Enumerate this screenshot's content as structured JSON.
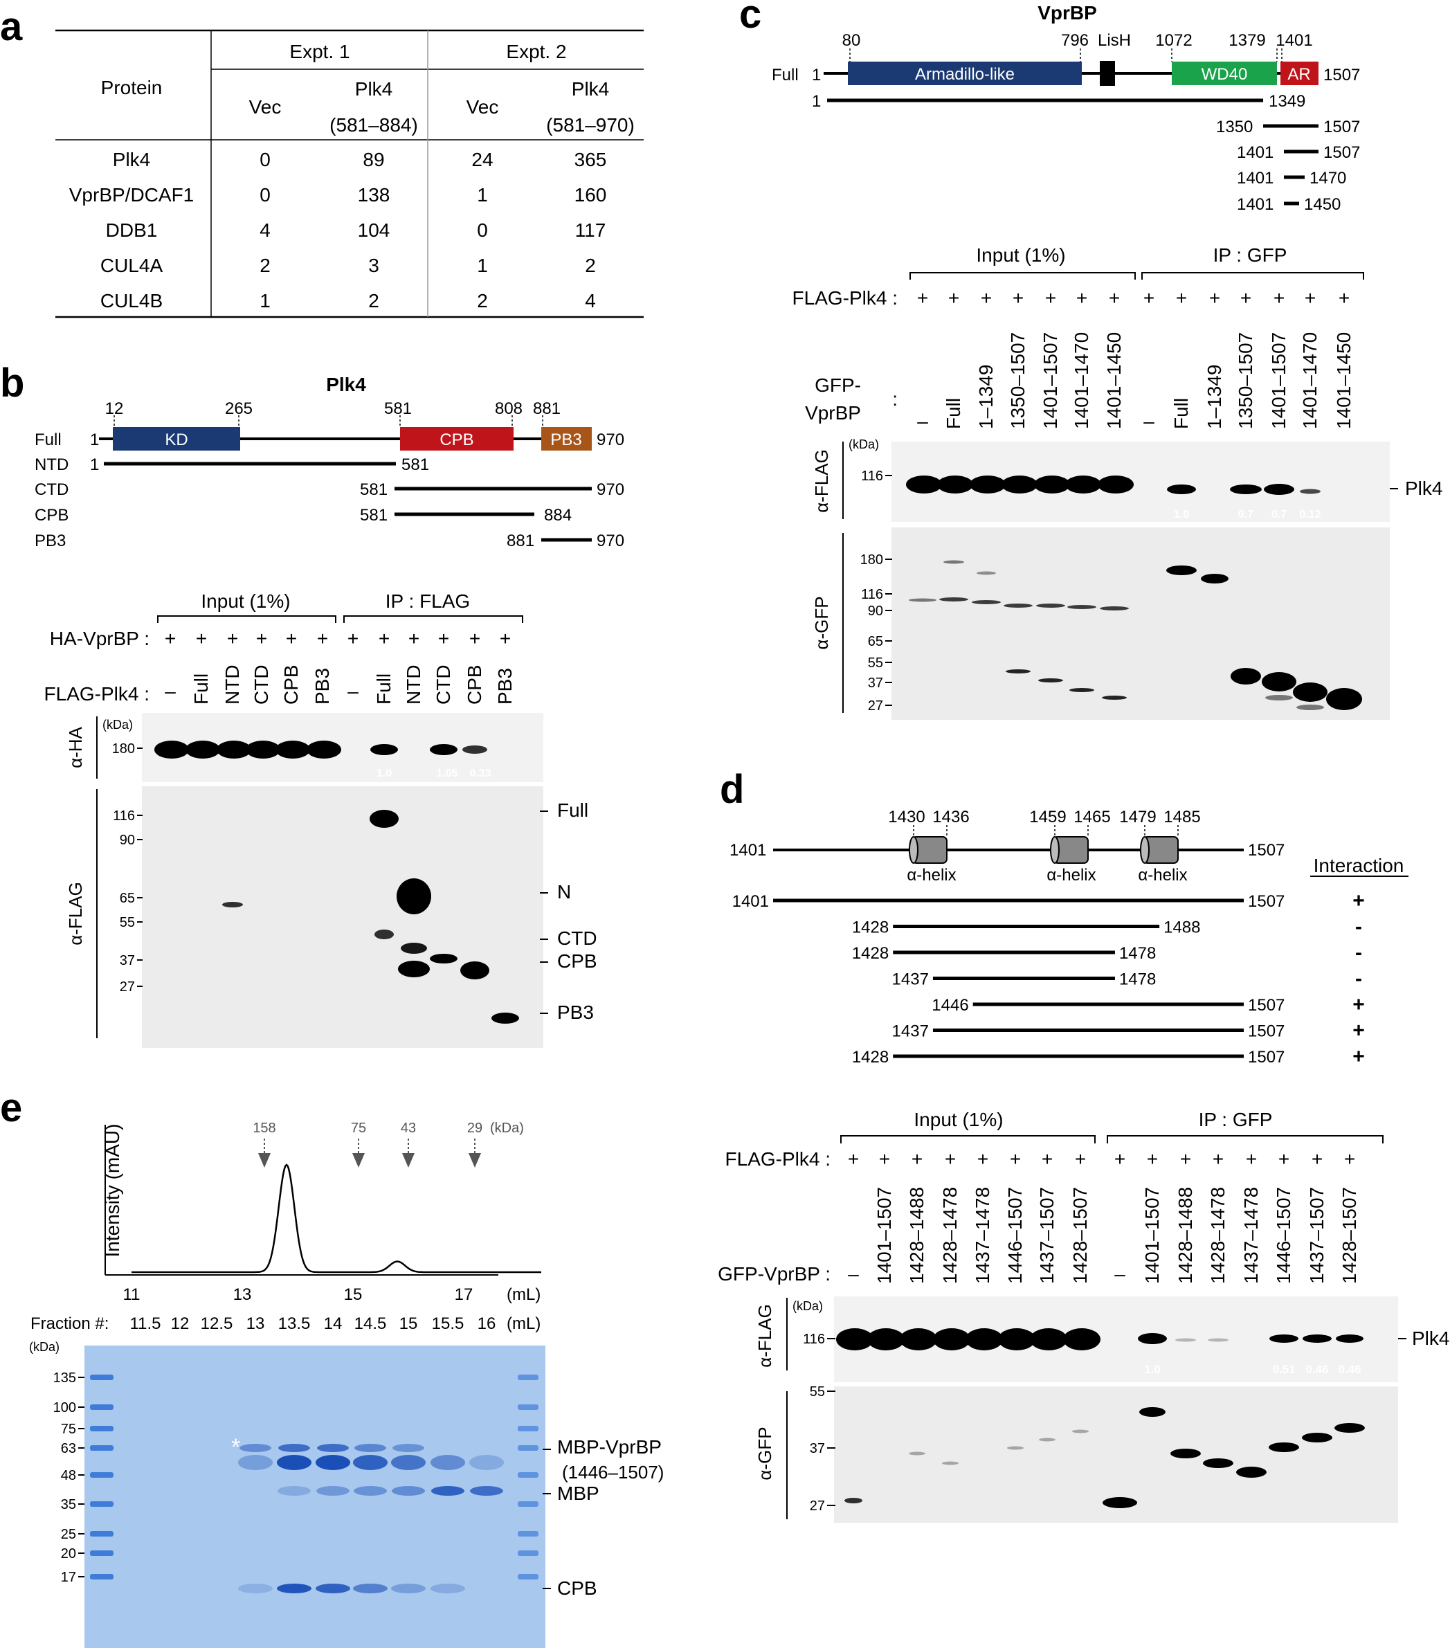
{
  "panel_letters": [
    "a",
    "b",
    "c",
    "d",
    "e"
  ],
  "table_a": {
    "protein_header": "Protein",
    "expt1": "Expt. 1",
    "expt2": "Expt. 2",
    "vec": "Vec",
    "plk4": "Plk4",
    "range1": "(581–884)",
    "range2": "(581–970)",
    "rows": [
      {
        "name": "Plk4",
        "v": [
          "0",
          "89",
          "24",
          "365"
        ]
      },
      {
        "name": "VprBP/DCAF1",
        "v": [
          "0",
          "138",
          "1",
          "160"
        ]
      },
      {
        "name": "DDB1",
        "v": [
          "4",
          "104",
          "0",
          "117"
        ]
      },
      {
        "name": "CUL4A",
        "v": [
          "2",
          "3",
          "1",
          "2"
        ]
      },
      {
        "name": "CUL4B",
        "v": [
          "1",
          "2",
          "2",
          "4"
        ]
      }
    ]
  },
  "panel_b": {
    "title": "Plk4",
    "domains": {
      "kd": "KD",
      "cpb": "CPB",
      "pb3": "PB3"
    },
    "domain_colors": {
      "kd": "#1b3a73",
      "cpb": "#c0141b",
      "pb3": "#a8551a"
    },
    "top_numbers": [
      "12",
      "265",
      "581",
      "808",
      "881"
    ],
    "constructs": [
      {
        "name": "Full",
        "start": "1",
        "end": "970"
      },
      {
        "name": "NTD",
        "start": "1",
        "end": "581"
      },
      {
        "name": "CTD",
        "start": "581",
        "end": "970"
      },
      {
        "name": "CPB",
        "start": "581",
        "end": "884"
      },
      {
        "name": "PB3",
        "start": "881",
        "end": "970"
      }
    ],
    "input_label": "Input (1%)",
    "ip_label": "IP : FLAG",
    "row1_label": "HA-VprBP :",
    "row2_label": "FLAG-Plk4 :",
    "plus": "+",
    "dash": "–",
    "lanes": [
      "Full",
      "NTD",
      "CTD",
      "CPB",
      "PB3"
    ],
    "kda": "(kDa)",
    "blot1_label": "α-HA",
    "blot1_markers": [
      "180"
    ],
    "blot1_quant": [
      "1.0",
      "1.05",
      "0.33"
    ],
    "blot2_label": "α-FLAG",
    "blot2_markers": [
      "116",
      "90",
      "65",
      "55",
      "37",
      "27"
    ],
    "blot2_right": [
      "Full",
      "N",
      "CTD",
      "CPB",
      "PB3"
    ]
  },
  "panel_c": {
    "title": "VprBP",
    "domains": {
      "arm": "Armadillo-like",
      "lish": "LisH",
      "wd40": "WD40",
      "ar": "AR"
    },
    "domain_colors": {
      "arm": "#1b3a73",
      "lish": "#000000",
      "wd40": "#1aa34a",
      "ar": "#c0141b"
    },
    "top_numbers": [
      "80",
      "796",
      "LisH",
      "1072",
      "1379",
      "1401"
    ],
    "full_name": "Full",
    "full_start": "1",
    "full_end": "1507",
    "constructs": [
      {
        "start": "1",
        "end": "1349"
      },
      {
        "start": "1350",
        "end": "1507"
      },
      {
        "start": "1401",
        "end": "1507"
      },
      {
        "start": "1401",
        "end": "1470"
      },
      {
        "start": "1401",
        "end": "1450"
      }
    ],
    "input_label": "Input (1%)",
    "ip_label": "IP : GFP",
    "row1_label": "FLAG-Plk4 :",
    "row2_label_1": "GFP-",
    "row2_label_2": "VprBP",
    "colon": ":",
    "lanes": [
      "Full",
      "1–1349",
      "1350–1507",
      "1401–1507",
      "1401–1470",
      "1401–1450"
    ],
    "kda": "(kDa)",
    "blot1_label": "α-FLAG",
    "blot1_markers": [
      "116"
    ],
    "blot1_quant": [
      "1.0",
      "0.7",
      "0.7",
      "0.12"
    ],
    "blot1_right": "Plk4",
    "blot2_label": "α-GFP",
    "blot2_markers": [
      "180",
      "116",
      "90",
      "65",
      "55",
      "37",
      "27"
    ]
  },
  "panel_d": {
    "start": "1401",
    "end": "1507",
    "helix_numbers": [
      "1430",
      "1436",
      "1459",
      "1465",
      "1479",
      "1485"
    ],
    "helix_label": "α-helix",
    "interaction_header": "Interaction",
    "constructs": [
      {
        "start": "1401",
        "end": "1507",
        "result": "+"
      },
      {
        "start": "1428",
        "end": "1488",
        "result": "-"
      },
      {
        "start": "1428",
        "end": "1478",
        "result": "-"
      },
      {
        "start": "1437",
        "end": "1478",
        "result": "-"
      },
      {
        "start": "1446",
        "end": "1507",
        "result": "+"
      },
      {
        "start": "1437",
        "end": "1507",
        "result": "+"
      },
      {
        "start": "1428",
        "end": "1507",
        "result": "+"
      }
    ],
    "input_label": "Input (1%)",
    "ip_label": "IP : GFP",
    "row1_label": "FLAG-Plk4 :",
    "row2_label": "GFP-VprBP :",
    "lanes": [
      "1401–1507",
      "1428–1488",
      "1428–1478",
      "1437–1478",
      "1446–1507",
      "1437–1507",
      "1428–1507"
    ],
    "kda": "(kDa)",
    "blot1_label": "α-FLAG",
    "blot1_markers": [
      "116"
    ],
    "blot1_quant": [
      "1.0",
      "0.51",
      "0.46",
      "0.46"
    ],
    "blot1_right": "Plk4",
    "blot2_label": "α-GFP",
    "blot2_markers": [
      "55",
      "37",
      "27"
    ]
  },
  "panel_e": {
    "chart_data": {
      "type": "line",
      "xlabel": "(mL)",
      "ylabel": "Intensity (mAU)",
      "x_ticks": [
        "11",
        "13",
        "15",
        "17"
      ],
      "xlim": [
        11,
        18.4
      ],
      "markers": [
        {
          "label": "158",
          "x": 13.4
        },
        {
          "label": "75",
          "x": 15.1
        },
        {
          "label": "43",
          "x": 16.0
        },
        {
          "label": "29",
          "x": 17.2
        }
      ],
      "marker_unit": "(kDa)",
      "peaks": [
        {
          "x": 13.8,
          "height": 1.0
        },
        {
          "x": 15.8,
          "height": 0.1
        }
      ]
    },
    "fraction_label": "Fraction #:",
    "fractions": [
      "11.5",
      "12",
      "12.5",
      "13",
      "13.5",
      "14",
      "14.5",
      "15",
      "15.5",
      "16"
    ],
    "fraction_unit": "(mL)",
    "kda": "(kDa)",
    "gel_markers": [
      "135",
      "100",
      "75",
      "63",
      "48",
      "35",
      "25",
      "20",
      "17"
    ],
    "star": "*",
    "right_labels": [
      "MBP-VprBP",
      "(1446–1507)",
      "MBP",
      "CPB"
    ],
    "gel_color": "#a8c8ee"
  }
}
